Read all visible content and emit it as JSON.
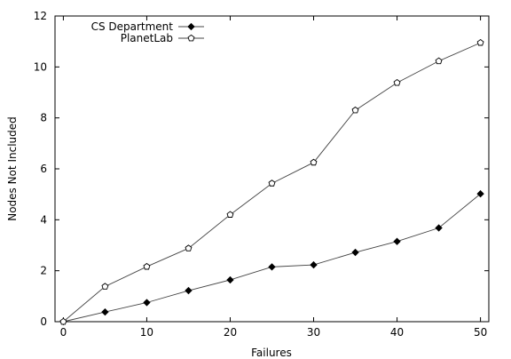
{
  "chart_data": {
    "type": "line",
    "title": "",
    "xlabel": "Failures",
    "ylabel": "Nodes Not Included",
    "xlim": [
      -1,
      51
    ],
    "ylim": [
      0,
      12
    ],
    "xticks": [
      0,
      10,
      20,
      30,
      40,
      50
    ],
    "yticks": [
      0,
      2,
      4,
      6,
      8,
      10,
      12
    ],
    "grid": false,
    "legend_position": "top-left",
    "series": [
      {
        "name": "CS Department",
        "marker": "filled-diamond",
        "color": "#000000",
        "x": [
          0,
          5,
          10,
          15,
          20,
          25,
          30,
          35,
          40,
          45,
          50
        ],
        "y": [
          0,
          0.38,
          0.75,
          1.22,
          1.64,
          2.15,
          2.23,
          2.72,
          3.15,
          3.68,
          5.02
        ]
      },
      {
        "name": "PlanetLab",
        "marker": "open-pentagon",
        "color": "#000000",
        "x": [
          0,
          5,
          10,
          15,
          20,
          25,
          30,
          35,
          40,
          45,
          50
        ],
        "y": [
          0,
          1.38,
          2.16,
          2.88,
          4.2,
          5.43,
          6.25,
          8.3,
          9.38,
          10.23,
          10.95
        ]
      }
    ]
  }
}
